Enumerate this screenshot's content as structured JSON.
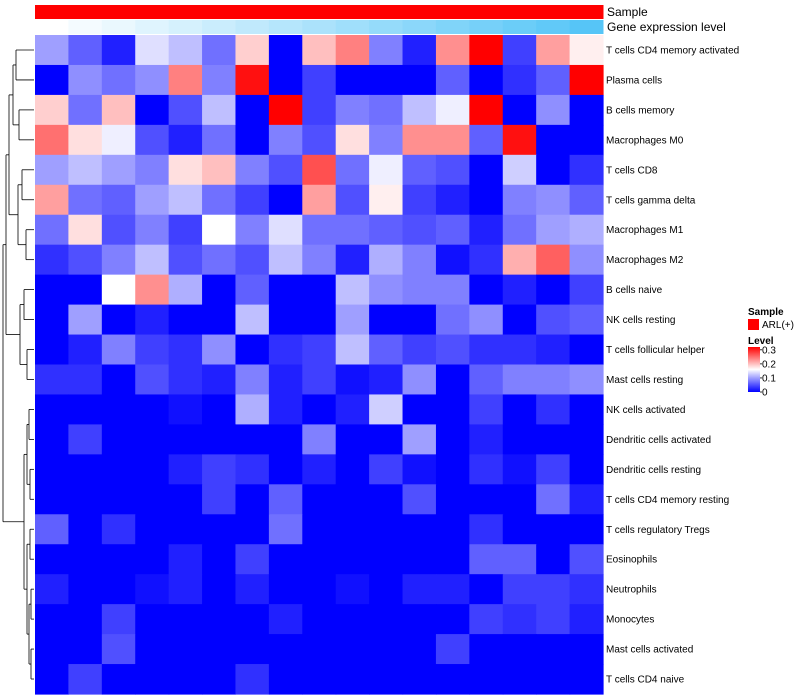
{
  "chart_data": {
    "type": "heatmap",
    "rows": [
      "T cells CD4 memory activated",
      "Plasma cells",
      "B cells memory",
      "Macrophages M0",
      "T cells CD8",
      "T cells gamma delta",
      "Macrophages M1",
      "Macrophages M2",
      "B cells naive",
      "NK cells resting",
      "T cells follicular helper",
      "Mast cells resting",
      "NK cells activated",
      "Dendritic cells activated",
      "Dendritic cells resting",
      "T cells CD4 memory resting",
      "T cells regulatory  Tregs",
      "Eosinophils",
      "Neutrophils",
      "Monocytes",
      "Mast cells activated",
      "T cells CD4 naive"
    ],
    "values": [
      [
        0.1,
        0.06,
        0.02,
        0.14,
        0.12,
        0.07,
        0.19,
        0.0,
        0.2,
        0.24,
        0.08,
        0.02,
        0.23,
        0.32,
        0.04,
        0.22,
        0.17
      ],
      [
        0.0,
        0.09,
        0.07,
        0.09,
        0.24,
        0.08,
        0.31,
        0.0,
        0.04,
        0.0,
        0.0,
        0.0,
        0.06,
        0.0,
        0.03,
        0.06,
        0.32
      ],
      [
        0.19,
        0.07,
        0.2,
        0.0,
        0.05,
        0.12,
        0.0,
        0.32,
        0.04,
        0.08,
        0.07,
        0.12,
        0.15,
        0.32,
        0.0,
        0.09,
        0.0
      ],
      [
        0.25,
        0.18,
        0.15,
        0.05,
        0.02,
        0.07,
        0.0,
        0.08,
        0.05,
        0.18,
        0.08,
        0.23,
        0.23,
        0.06,
        0.31,
        0.0,
        0.0
      ],
      [
        0.1,
        0.12,
        0.1,
        0.08,
        0.18,
        0.2,
        0.08,
        0.05,
        0.27,
        0.07,
        0.15,
        0.06,
        0.05,
        0.0,
        0.13,
        0.0,
        0.03
      ],
      [
        0.22,
        0.07,
        0.06,
        0.1,
        0.12,
        0.07,
        0.04,
        0.0,
        0.22,
        0.05,
        0.17,
        0.04,
        0.02,
        0.0,
        0.08,
        0.09,
        0.06
      ],
      [
        0.07,
        0.18,
        0.05,
        0.08,
        0.04,
        0.16,
        0.08,
        0.14,
        0.07,
        0.07,
        0.06,
        0.05,
        0.06,
        0.02,
        0.07,
        0.1,
        0.11
      ],
      [
        0.03,
        0.05,
        0.08,
        0.12,
        0.05,
        0.07,
        0.05,
        0.12,
        0.08,
        0.02,
        0.11,
        0.08,
        0.01,
        0.03,
        0.21,
        0.26,
        0.09
      ],
      [
        0.0,
        0.0,
        0.16,
        0.23,
        0.11,
        0.0,
        0.06,
        0.0,
        0.0,
        0.12,
        0.09,
        0.08,
        0.08,
        0.0,
        0.02,
        0.0,
        0.04
      ],
      [
        0.0,
        0.1,
        0.0,
        0.02,
        0.0,
        0.0,
        0.12,
        0.0,
        0.0,
        0.1,
        0.0,
        0.0,
        0.07,
        0.09,
        0.0,
        0.05,
        0.06
      ],
      [
        0.0,
        0.02,
        0.08,
        0.04,
        0.03,
        0.09,
        0.0,
        0.03,
        0.04,
        0.12,
        0.06,
        0.04,
        0.05,
        0.03,
        0.03,
        0.02,
        0.0
      ],
      [
        0.03,
        0.03,
        0.0,
        0.05,
        0.03,
        0.02,
        0.08,
        0.02,
        0.04,
        0.01,
        0.02,
        0.09,
        0.0,
        0.06,
        0.08,
        0.08,
        0.09
      ],
      [
        0.0,
        0.0,
        0.0,
        0.0,
        0.01,
        0.0,
        0.11,
        0.02,
        0.0,
        0.02,
        0.13,
        0.0,
        0.0,
        0.04,
        0.0,
        0.03,
        0.0
      ],
      [
        0.0,
        0.04,
        0.0,
        0.0,
        0.0,
        0.0,
        0.0,
        0.0,
        0.08,
        0.0,
        0.0,
        0.1,
        0.0,
        0.02,
        0.0,
        0.0,
        0.0
      ],
      [
        0.0,
        0.0,
        0.0,
        0.0,
        0.02,
        0.04,
        0.03,
        0.0,
        0.02,
        0.0,
        0.04,
        0.01,
        0.0,
        0.03,
        0.01,
        0.04,
        0.0
      ],
      [
        0.0,
        0.0,
        0.0,
        0.0,
        0.0,
        0.04,
        0.0,
        0.06,
        0.0,
        0.0,
        0.0,
        0.05,
        0.0,
        0.0,
        0.0,
        0.07,
        0.02
      ],
      [
        0.06,
        0.0,
        0.03,
        0.0,
        0.0,
        0.0,
        0.0,
        0.07,
        0.0,
        0.0,
        0.0,
        0.0,
        0.0,
        0.03,
        0.0,
        0.0,
        0.0
      ],
      [
        0.0,
        0.0,
        0.0,
        0.0,
        0.02,
        0.0,
        0.04,
        0.0,
        0.0,
        0.0,
        0.0,
        0.0,
        0.0,
        0.06,
        0.06,
        0.0,
        0.05
      ],
      [
        0.02,
        0.0,
        0.0,
        0.01,
        0.02,
        0.0,
        0.02,
        0.0,
        0.0,
        0.01,
        0.0,
        0.02,
        0.02,
        0.0,
        0.04,
        0.04,
        0.03
      ],
      [
        0.0,
        0.0,
        0.04,
        0.0,
        0.0,
        0.0,
        0.0,
        0.02,
        0.0,
        0.0,
        0.0,
        0.0,
        0.0,
        0.04,
        0.03,
        0.04,
        0.02
      ],
      [
        0.0,
        0.0,
        0.05,
        0.0,
        0.0,
        0.0,
        0.0,
        0.0,
        0.0,
        0.0,
        0.0,
        0.0,
        0.04,
        0.0,
        0.0,
        0.0,
        0.0
      ],
      [
        0.0,
        0.04,
        0.0,
        0.0,
        0.0,
        0.0,
        0.03,
        0.0,
        0.0,
        0.0,
        0.0,
        0.0,
        0.0,
        0.0,
        0.0,
        0.0,
        0.0
      ]
    ],
    "annotations": {
      "sample": {
        "label": "Sample",
        "values": [
          "ARL(+)",
          "ARL(+)",
          "ARL(+)",
          "ARL(+)",
          "ARL(+)",
          "ARL(+)",
          "ARL(+)",
          "ARL(+)",
          "ARL(+)",
          "ARL(+)",
          "ARL(+)",
          "ARL(+)",
          "ARL(+)",
          "ARL(+)",
          "ARL(+)",
          "ARL(+)",
          "ARL(+)"
        ],
        "color": "#ff0000"
      },
      "gene_expression": {
        "label": "Gene expression level",
        "values": [
          0.0,
          0.06,
          0.12,
          0.18,
          0.24,
          0.3,
          0.36,
          0.42,
          0.48,
          0.54,
          0.6,
          0.66,
          0.72,
          0.78,
          0.84,
          0.9,
          0.96
        ],
        "color_low": "#ffffff",
        "color_high": "#4fc3f7"
      }
    },
    "legend": {
      "sample_title": "Sample",
      "sample_entry": "ARL(+)",
      "level_title": "Level",
      "level_ticks": [
        "0.3",
        "0.2",
        "0.1",
        "0"
      ],
      "level_tick_values": [
        0.3,
        0.2,
        0.1,
        0
      ],
      "range": [
        0,
        0.32
      ],
      "placement": "right"
    },
    "colors": {
      "low": "#0000ff",
      "mid": "#ffffff",
      "high": "#ff0000",
      "mid_value": 0.16
    },
    "row_dendrogram": true
  }
}
